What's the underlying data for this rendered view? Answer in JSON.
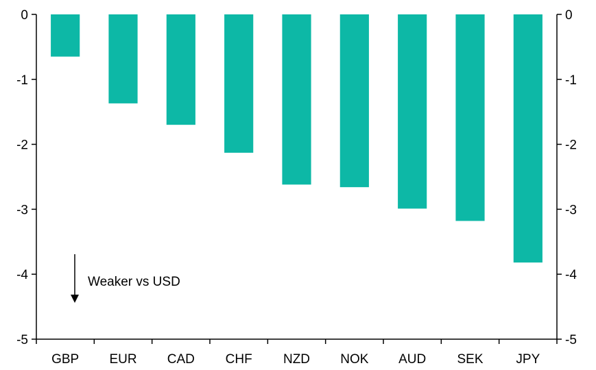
{
  "chart_data": {
    "type": "bar",
    "title": "",
    "xlabel": "",
    "ylabel": "",
    "categories": [
      "GBP",
      "EUR",
      "CAD",
      "CHF",
      "NZD",
      "NOK",
      "AUD",
      "SEK",
      "JPY"
    ],
    "series": [
      {
        "values": [
          -0.65,
          -1.37,
          -1.7,
          -2.13,
          -2.62,
          -2.66,
          -2.99,
          -3.18,
          -3.82
        ]
      }
    ],
    "ylim": [
      -5,
      0
    ],
    "yticks": [
      "0",
      "-1",
      "-2",
      "-3",
      "-4",
      "-5"
    ],
    "secondary_yaxis": true,
    "grid": false,
    "legend": "none",
    "bar_color": "#0DB8A6",
    "annotation": {
      "text": "Weaker vs USD",
      "arrow": "down"
    }
  }
}
